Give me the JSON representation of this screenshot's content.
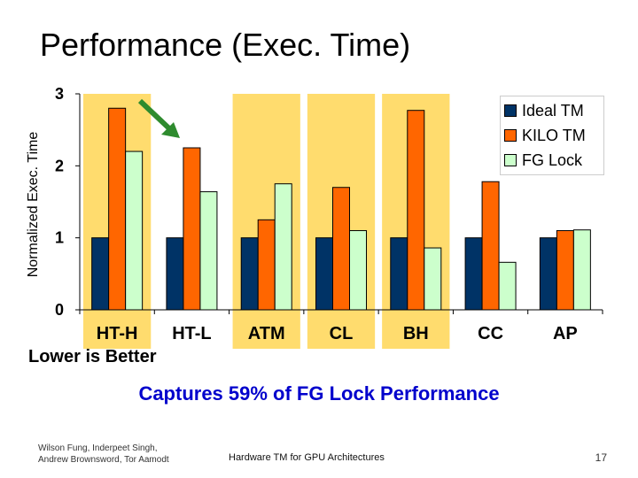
{
  "slide": {
    "title": "Performance (Exec. Time)",
    "note": "Lower is Better",
    "highlight_text": "Captures 59% of FG Lock Performance",
    "footer_authors_line1": "Wilson Fung, Inderpeet Singh,",
    "footer_authors_line2": "Andrew Brownsword, Tor Aamodt",
    "footer_course": "Hardware TM for GPU Architectures",
    "page_number": "17",
    "colors": {
      "highlight": "#0000cc",
      "band": "#ffdc6e",
      "arrow": "#2e8b2e"
    }
  },
  "chart_data": {
    "type": "bar",
    "title": "",
    "xlabel": "",
    "ylabel": "Normalized Exec. Time",
    "ylim": [
      0,
      3
    ],
    "yticks": [
      "0",
      "1",
      "2",
      "3"
    ],
    "categories": [
      "HT-H",
      "HT-L",
      "ATM",
      "CL",
      "BH",
      "CC",
      "AP"
    ],
    "highlighted_categories": [
      "HT-H",
      "ATM",
      "CL",
      "BH"
    ],
    "series": [
      {
        "name": "Ideal TM",
        "color": "#003366",
        "values": [
          1,
          1,
          1,
          1,
          1,
          1,
          1
        ]
      },
      {
        "name": "KILO TM",
        "color": "#ff6600",
        "values": [
          2.8,
          2.25,
          1.25,
          1.7,
          2.77,
          1.78,
          1.1
        ]
      },
      {
        "name": "FG Lock",
        "color": "#ccffcc",
        "values": [
          2.2,
          1.64,
          1.75,
          1.1,
          0.86,
          0.66,
          1.11
        ]
      }
    ],
    "legend": "top-right"
  }
}
